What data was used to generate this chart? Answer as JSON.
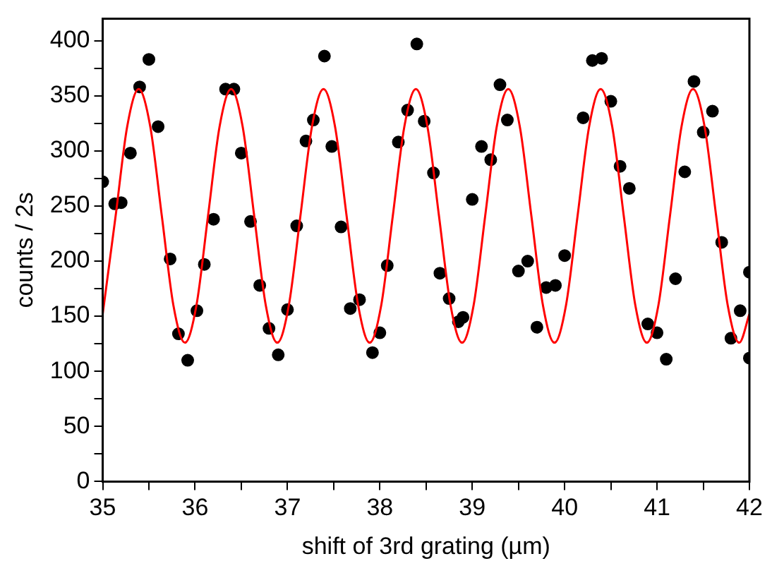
{
  "chart_data": {
    "type": "scatter",
    "xlabel": "shift of 3rd grating (µm)",
    "ylabel": "counts / 2s",
    "xlim": [
      35,
      42
    ],
    "xticks": [
      35,
      {
        "value": 35.5,
        "label": null
      },
      36,
      {
        "value": 36.5,
        "label": null
      },
      37,
      {
        "value": 37.5,
        "label": null
      },
      38,
      {
        "value": 38.5,
        "label": null
      },
      39,
      {
        "value": 39.5,
        "label": null
      },
      40,
      {
        "value": 40.5,
        "label": null
      },
      41,
      {
        "value": 41.5,
        "label": null
      },
      42
    ],
    "ylim": [
      0,
      420
    ],
    "yticks": [
      0,
      {
        "value": 25,
        "label": null
      },
      50,
      {
        "value": 75,
        "label": null
      },
      100,
      {
        "value": 125,
        "label": null
      },
      150,
      {
        "value": 175,
        "label": null
      },
      200,
      {
        "value": 225,
        "label": null
      },
      250,
      {
        "value": 275,
        "label": null
      },
      300,
      {
        "value": 325,
        "label": null
      },
      350,
      {
        "value": 375,
        "label": null
      },
      400
    ],
    "grid": false,
    "legend": false,
    "series": [
      {
        "color": "#000000",
        "marker": "circle",
        "x": [
          35.0,
          35.13,
          35.2,
          35.3,
          35.4,
          35.5,
          35.6,
          35.73,
          35.82,
          35.92,
          36.02,
          36.1,
          36.2,
          36.33,
          36.42,
          36.5,
          36.6,
          36.7,
          36.8,
          36.9,
          37.0,
          37.1,
          37.2,
          37.28,
          37.4,
          37.48,
          37.58,
          37.68,
          37.78,
          37.92,
          38.0,
          38.08,
          38.2,
          38.3,
          38.4,
          38.48,
          38.58,
          38.65,
          38.75,
          38.85,
          38.9,
          39.0,
          39.1,
          39.2,
          39.3,
          39.38,
          39.5,
          39.6,
          39.7,
          39.8,
          39.9,
          40.0,
          40.2,
          40.3,
          40.4,
          40.5,
          40.6,
          40.7,
          40.9,
          41.0,
          41.1,
          41.2,
          41.3,
          41.4,
          41.5,
          41.6,
          41.7,
          41.8,
          41.9,
          42.0,
          42.0
        ],
        "values": [
          272,
          252,
          253,
          298,
          358,
          383,
          322,
          202,
          134,
          110,
          155,
          197,
          238,
          356,
          356,
          298,
          236,
          178,
          139,
          115,
          156,
          232,
          309,
          328,
          386,
          304,
          231,
          157,
          165,
          117,
          135,
          196,
          308,
          337,
          397,
          327,
          280,
          189,
          166,
          145,
          149,
          256,
          304,
          292,
          360,
          328,
          191,
          200,
          140,
          176,
          178,
          205,
          330,
          382,
          384,
          345,
          286,
          266,
          143,
          135,
          111,
          184,
          281,
          363,
          317,
          336,
          217,
          130,
          155,
          112,
          190
        ]
      },
      {
        "type": "line",
        "color": "#ff0000",
        "marker": "none",
        "line_style": "solid",
        "x": [
          35.0,
          35.14,
          35.265,
          35.39,
          35.515,
          35.64,
          35.765,
          35.89,
          36.015,
          36.14,
          36.265,
          36.39,
          36.515,
          36.64,
          36.765,
          36.89,
          37.015,
          37.14,
          37.265,
          37.39,
          37.515,
          37.64,
          37.765,
          37.89,
          38.015,
          38.14,
          38.265,
          38.39,
          38.515,
          38.64,
          38.765,
          38.89,
          39.015,
          39.14,
          39.265,
          39.39,
          39.515,
          39.64,
          39.765,
          39.89,
          40.015,
          40.14,
          40.265,
          40.39,
          40.515,
          40.64,
          40.765,
          40.89,
          41.015,
          41.14,
          41.265,
          41.39,
          41.515,
          41.64,
          41.765,
          41.89,
          42.0
        ],
        "values": [
          152,
          241,
          322,
          356,
          322,
          241,
          160,
          126,
          160,
          241,
          322,
          356,
          322,
          241,
          160,
          126,
          160,
          241,
          322,
          356,
          322,
          241,
          160,
          126,
          160,
          241,
          322,
          356,
          322,
          241,
          160,
          126,
          160,
          241,
          322,
          356,
          322,
          241,
          160,
          126,
          160,
          241,
          322,
          356,
          322,
          241,
          160,
          126,
          160,
          241,
          322,
          356,
          322,
          241,
          160,
          126,
          152
        ]
      }
    ]
  }
}
